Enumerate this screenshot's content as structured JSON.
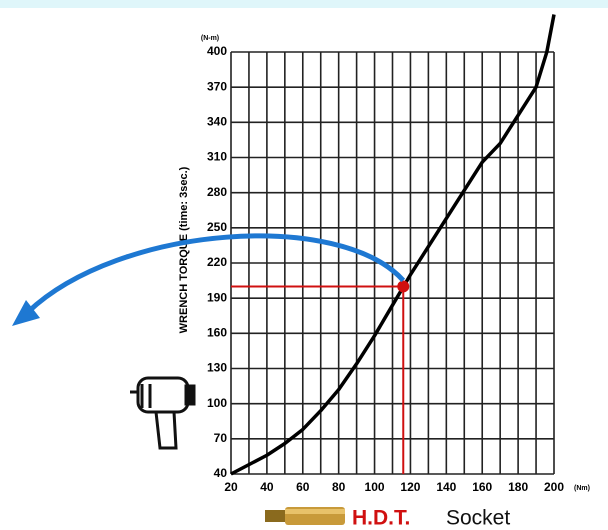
{
  "chart_data": {
    "type": "line",
    "y_label": "WRENCH TORQUE (time: 3sec.)",
    "y_unit": "(N-m)",
    "x_unit": "(Nm)",
    "x": [
      20,
      30,
      40,
      50,
      60,
      70,
      80,
      90,
      100,
      110,
      120,
      130,
      140,
      150,
      160,
      170,
      180,
      190,
      196,
      200
    ],
    "values": [
      40,
      48,
      56,
      66,
      78,
      94,
      112,
      134,
      158,
      184,
      210,
      234,
      258,
      282,
      306,
      322,
      346,
      370,
      400,
      432
    ],
    "color": "#000000",
    "xlim": [
      20,
      200
    ],
    "ylim": [
      40,
      400
    ],
    "xticks": [
      20,
      40,
      60,
      80,
      100,
      120,
      140,
      160,
      180,
      200
    ],
    "x_minor_ticks": [
      30,
      50,
      70,
      90,
      110,
      130,
      150,
      170,
      190
    ],
    "yticks": [
      40,
      70,
      100,
      130,
      160,
      190,
      220,
      250,
      280,
      310,
      340,
      370,
      400
    ],
    "grid": true,
    "marker": {
      "x": 116,
      "y": 200,
      "color": "#d01010"
    }
  },
  "footer": {
    "brand": "H.D.T.",
    "product": "Socket"
  }
}
